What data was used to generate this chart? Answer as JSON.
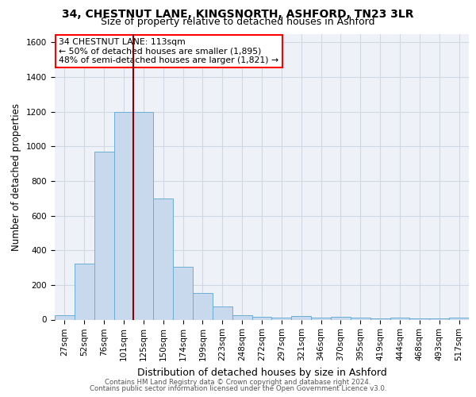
{
  "title_line1": "34, CHESTNUT LANE, KINGSNORTH, ASHFORD, TN23 3LR",
  "title_line2": "Size of property relative to detached houses in Ashford",
  "xlabel": "Distribution of detached houses by size in Ashford",
  "ylabel": "Number of detached properties",
  "footer_line1": "Contains HM Land Registry data © Crown copyright and database right 2024.",
  "footer_line2": "Contains public sector information licensed under the Open Government Licence v3.0.",
  "annotation_line1": "34 CHESTNUT LANE: 113sqm",
  "annotation_line2": "← 50% of detached houses are smaller (1,895)",
  "annotation_line3": "48% of semi-detached houses are larger (1,821) →",
  "bar_labels": [
    "27sqm",
    "52sqm",
    "76sqm",
    "101sqm",
    "125sqm",
    "150sqm",
    "174sqm",
    "199sqm",
    "223sqm",
    "248sqm",
    "272sqm",
    "297sqm",
    "321sqm",
    "346sqm",
    "370sqm",
    "395sqm",
    "419sqm",
    "444sqm",
    "468sqm",
    "493sqm",
    "517sqm"
  ],
  "bar_values": [
    25,
    325,
    970,
    1200,
    1200,
    700,
    305,
    155,
    75,
    25,
    15,
    10,
    20,
    10,
    15,
    10,
    5,
    10,
    5,
    5,
    10
  ],
  "bar_color": "#c9d9ed",
  "bar_edge_color": "#6baed6",
  "vline_color": "#8b0000",
  "vline_x_index": 3.5,
  "grid_color": "#d0d8e4",
  "background_color": "#eef2f8",
  "ylim": [
    0,
    1650
  ],
  "yticks": [
    0,
    200,
    400,
    600,
    800,
    1000,
    1200,
    1400,
    1600
  ],
  "title_fontsize": 10,
  "subtitle_fontsize": 9,
  "tick_fontsize": 7.5,
  "ylabel_fontsize": 8.5,
  "xlabel_fontsize": 9
}
